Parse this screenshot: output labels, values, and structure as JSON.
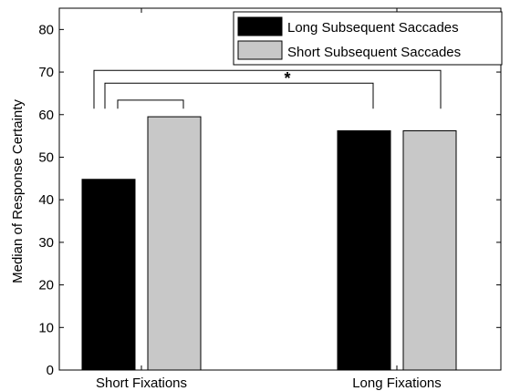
{
  "chart_data": {
    "type": "bar",
    "categories": [
      "Short Fixations",
      "Long Fixations"
    ],
    "series": [
      {
        "name": "Long Subsequent Saccades",
        "values": [
          44.8,
          56.2
        ],
        "color": "#000000"
      },
      {
        "name": "Short Subsequent Saccades",
        "values": [
          59.5,
          56.2
        ],
        "color": "#c8c8c8"
      }
    ],
    "title": "",
    "xlabel": "",
    "ylabel": "Median of Response Certainty",
    "ylim": [
      0,
      85
    ],
    "yticks": [
      0,
      10,
      20,
      30,
      40,
      50,
      60,
      70,
      80
    ],
    "grid": false,
    "legend_position": "top-right",
    "significance": [
      {
        "text": "*"
      }
    ]
  }
}
